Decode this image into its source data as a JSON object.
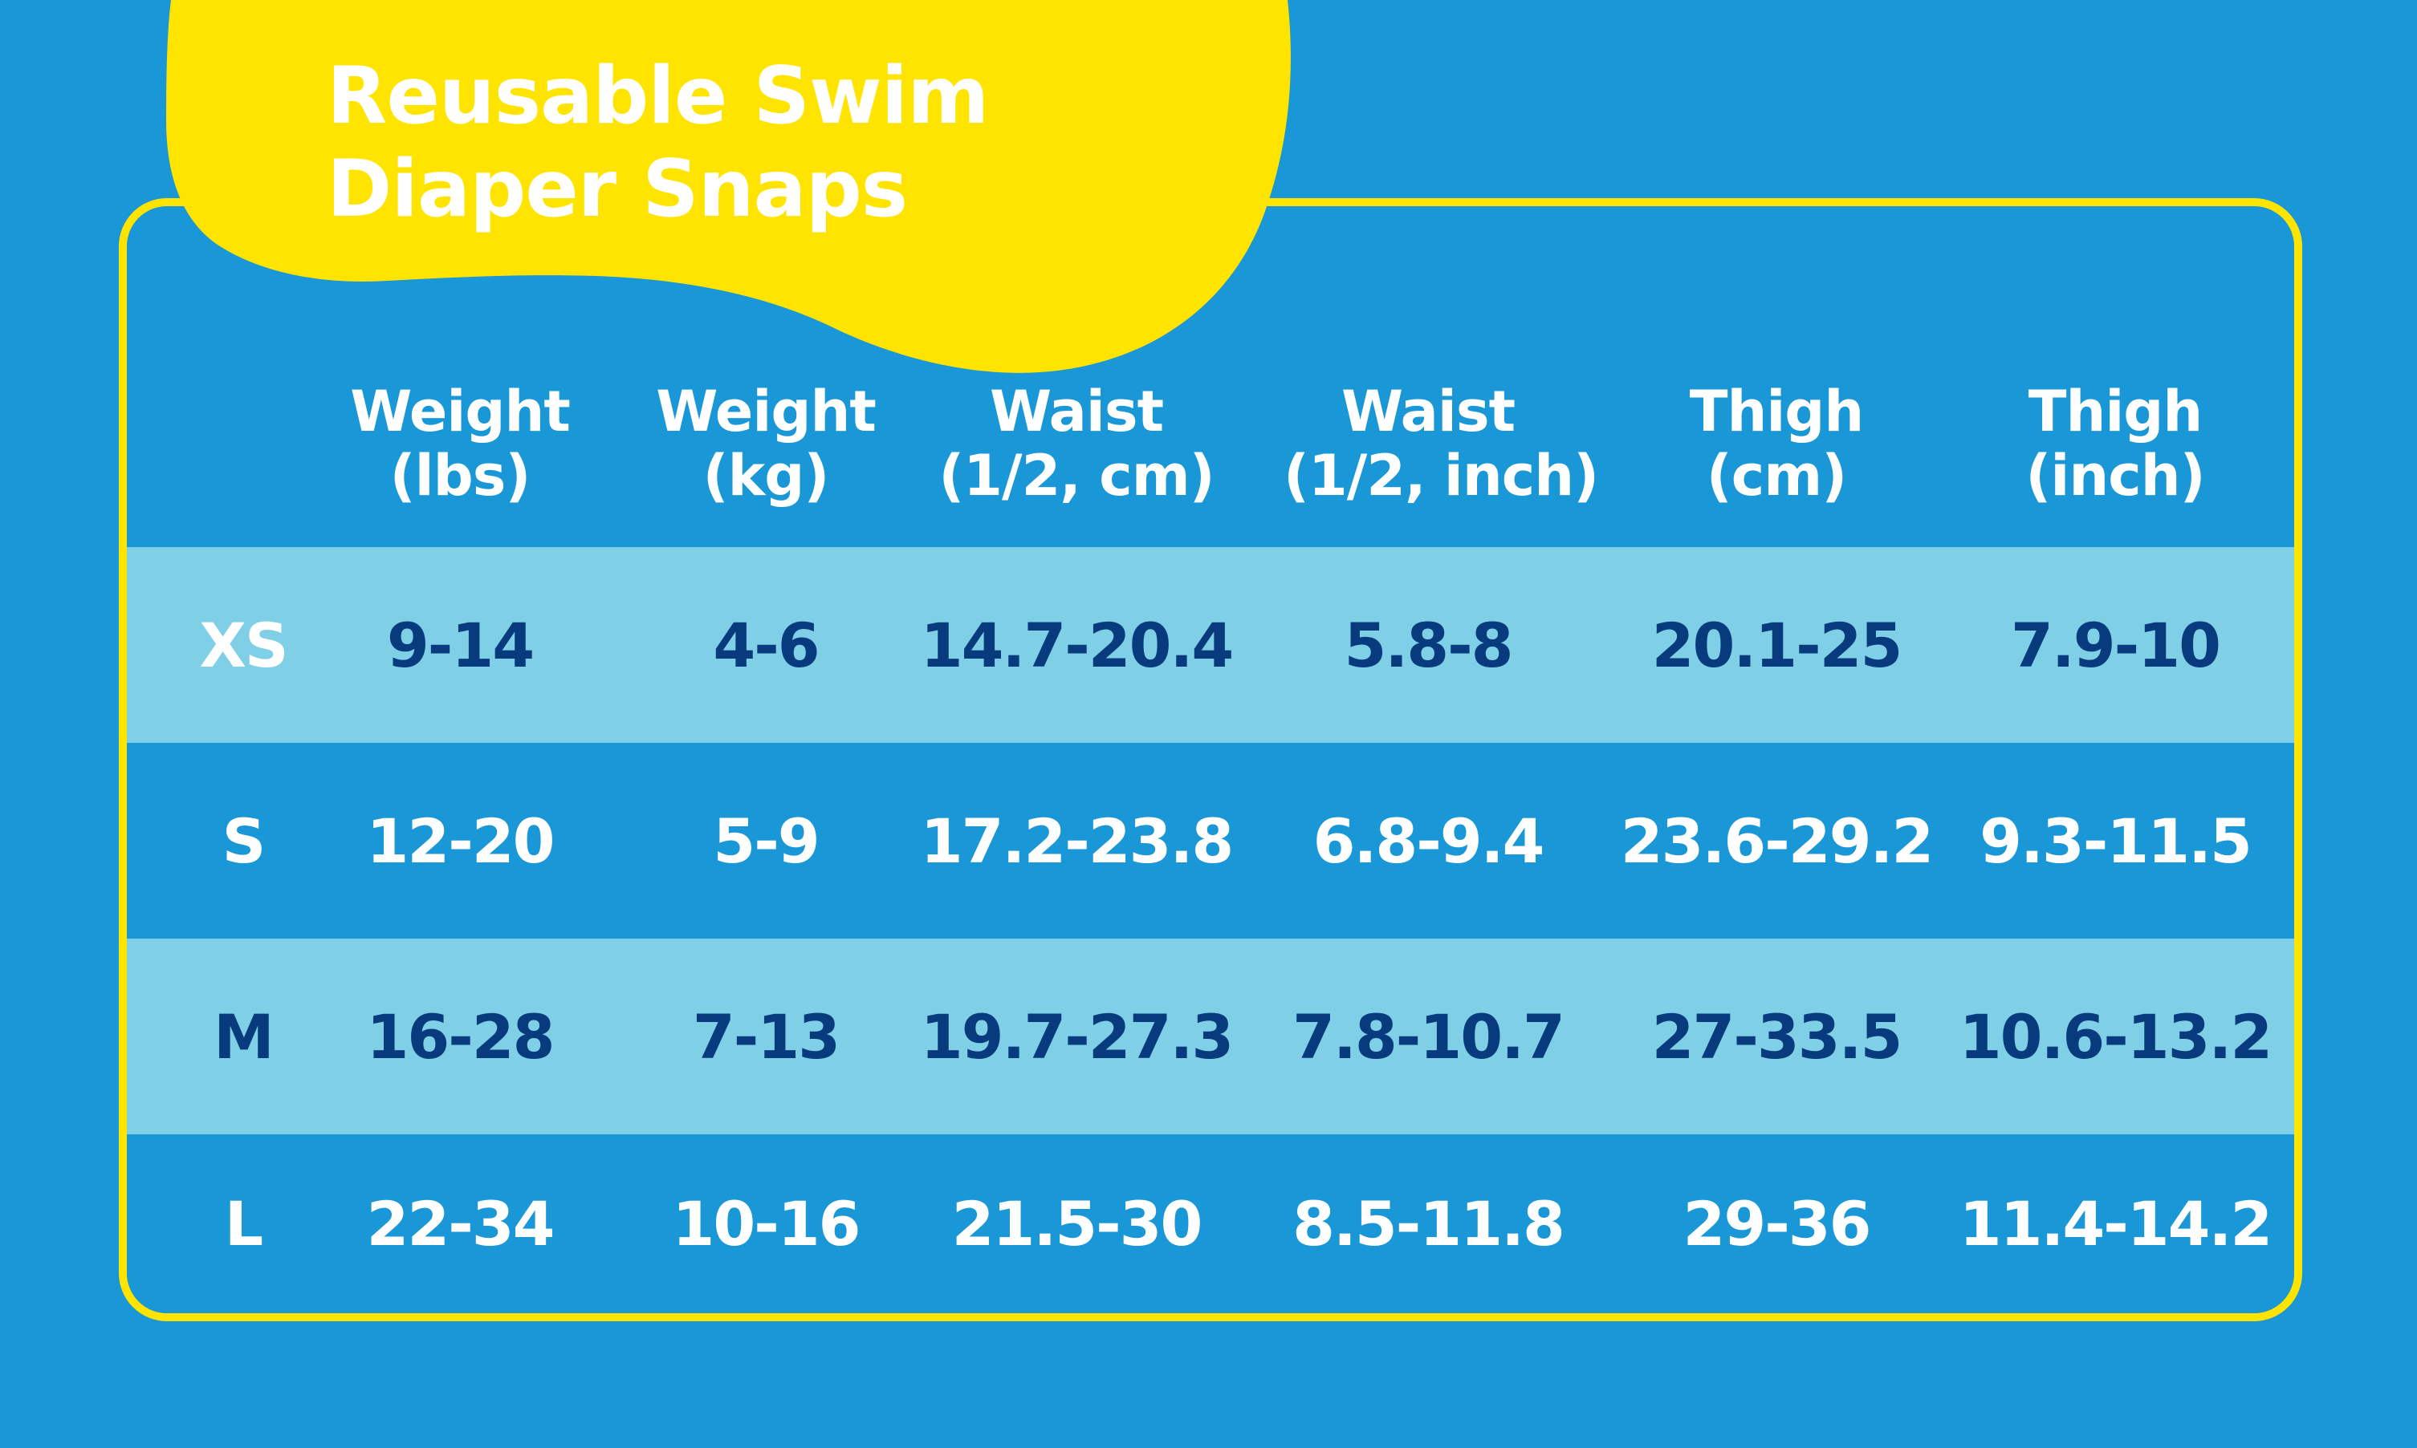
{
  "title": {
    "line1": "Reusable Swim",
    "line2": "Diaper Snaps"
  },
  "colors": {
    "background": "#1997d6",
    "accent": "#ffe400",
    "light_row": "#7fd0e7",
    "dark_text": "#083b7d",
    "white": "#ffffff"
  },
  "table": {
    "columns": [
      {
        "line1": "Weight",
        "line2": "(lbs)"
      },
      {
        "line1": "Weight",
        "line2": "(kg)"
      },
      {
        "line1": "Waist",
        "line2": "(1/2, cm)"
      },
      {
        "line1": "Waist",
        "line2": "(1/2, inch)"
      },
      {
        "line1": "Thigh",
        "line2": "(cm)"
      },
      {
        "line1": "Thigh",
        "line2": "(inch)"
      }
    ],
    "rows": [
      {
        "size": "XS",
        "values": [
          "9-14",
          "4-6",
          "14.7-20.4",
          "5.8-8",
          "20.1-25",
          "7.9-10"
        ]
      },
      {
        "size": "S",
        "values": [
          "12-20",
          "5-9",
          "17.2-23.8",
          "6.8-9.4",
          "23.6-29.2",
          "9.3-11.5"
        ]
      },
      {
        "size": "M",
        "values": [
          "16-28",
          "7-13",
          "19.7-27.3",
          "7.8-10.7",
          "27-33.5",
          "10.6-13.2"
        ]
      },
      {
        "size": "L",
        "values": [
          "22-34",
          "10-16",
          "21.5-30",
          "8.5-11.8",
          "29-36",
          "11.4-14.2"
        ]
      }
    ]
  }
}
